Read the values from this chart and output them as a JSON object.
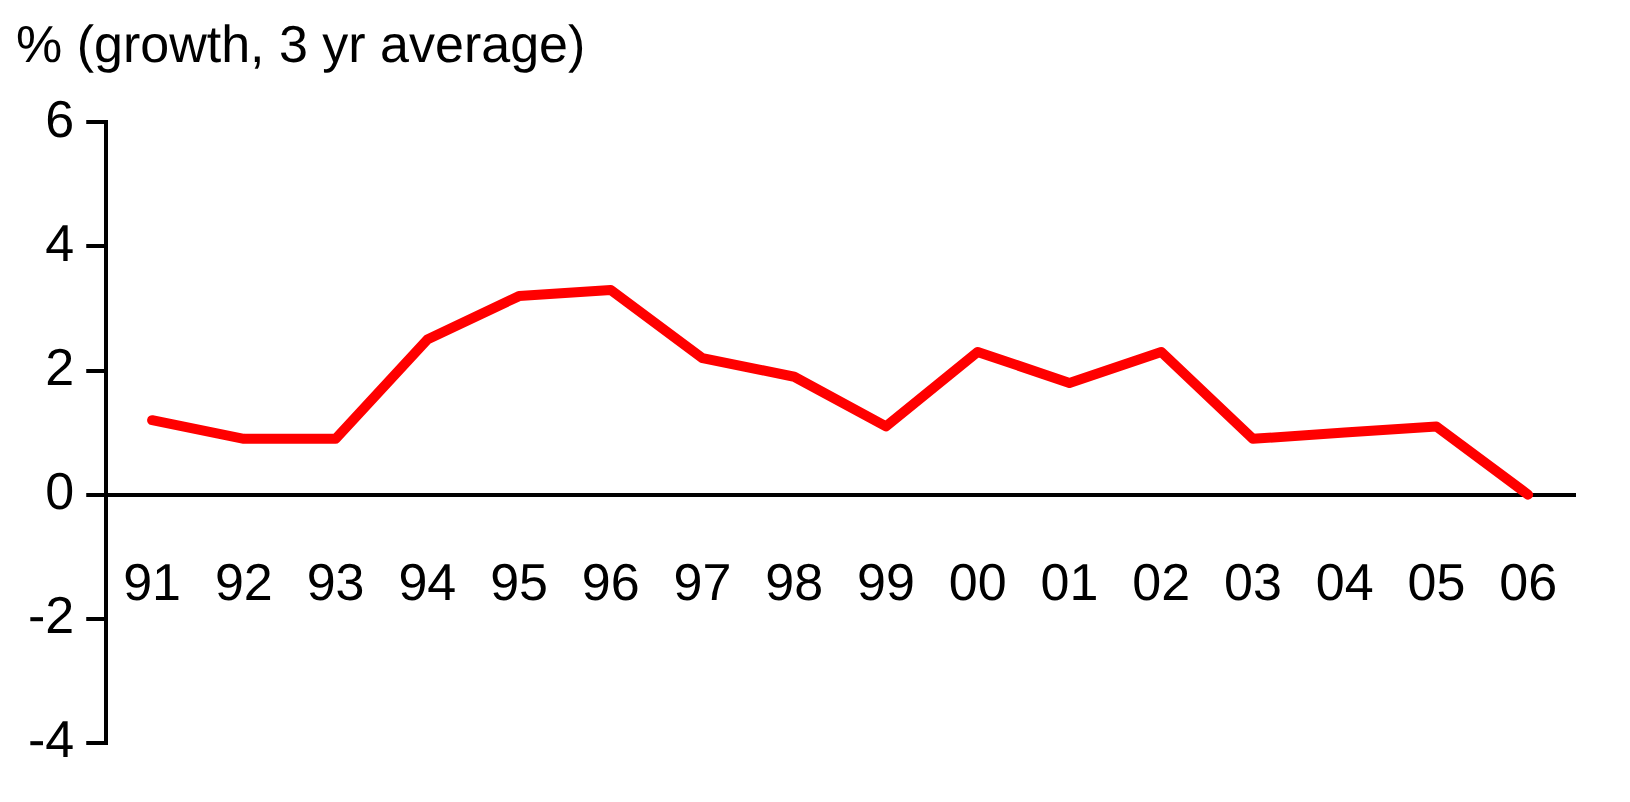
{
  "chart_data": {
    "type": "line",
    "ylabel": "% (growth, 3 yr average)",
    "categories": [
      "91",
      "92",
      "93",
      "94",
      "95",
      "96",
      "97",
      "98",
      "99",
      "00",
      "01",
      "02",
      "03",
      "04",
      "05",
      "06"
    ],
    "series": [
      {
        "color": "#ff0000",
        "values": [
          1.2,
          0.9,
          0.9,
          2.5,
          3.2,
          3.3,
          2.2,
          1.9,
          1.1,
          2.3,
          1.8,
          2.3,
          0.9,
          1.0,
          1.1,
          0.0
        ]
      }
    ],
    "ylim": [
      -4,
      6
    ],
    "yticks": [
      -4,
      -2,
      0,
      2,
      4,
      6
    ],
    "grid": false,
    "legend": false,
    "marker": "none"
  }
}
